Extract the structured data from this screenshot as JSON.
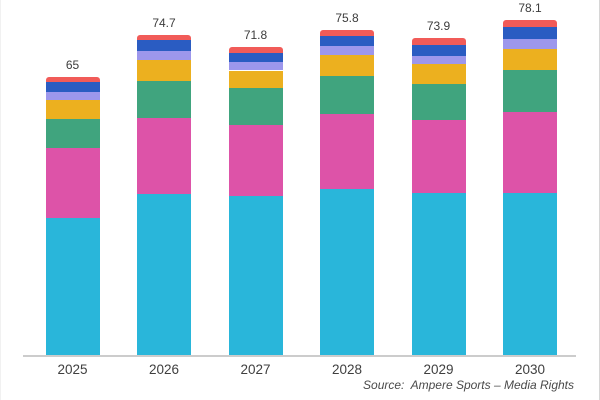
{
  "chart_data": {
    "type": "bar",
    "stacked": true,
    "title": "",
    "legend": "none",
    "grid": false,
    "categories": [
      "2025",
      "2026",
      "2027",
      "2028",
      "2029",
      "2030"
    ],
    "totals": [
      65,
      74.7,
      71.8,
      75.8,
      73.9,
      78.1
    ],
    "total_labels": [
      "65",
      "74.7",
      "71.8",
      "75.8",
      "73.9",
      "78.1"
    ],
    "ylim": [
      0,
      80
    ],
    "series": [
      {
        "name": "cyan",
        "color": "#29b6da",
        "values": [
          32.2,
          37.7,
          37.1,
          38.8,
          37.8,
          38.0
        ]
      },
      {
        "name": "pink",
        "color": "#dd53a8",
        "values": [
          16.1,
          17.6,
          16.6,
          17.5,
          17.1,
          18.8
        ]
      },
      {
        "name": "green",
        "color": "#40a47e",
        "values": [
          6.8,
          8.7,
          8.6,
          8.9,
          8.3,
          9.7
        ]
      },
      {
        "name": "yellow",
        "color": "#ecb01f",
        "values": [
          4.4,
          4.9,
          4.1,
          4.9,
          4.6,
          4.9
        ]
      },
      {
        "name": "purple",
        "color": "#9d97ec",
        "values": [
          2.0,
          2.1,
          2.0,
          1.9,
          1.9,
          2.3
        ]
      },
      {
        "name": "blue",
        "color": "#2a5cc2",
        "values": [
          2.3,
          2.4,
          2.1,
          2.5,
          2.7,
          2.9
        ]
      },
      {
        "name": "red",
        "color": "#f15b58",
        "values": [
          1.2,
          1.3,
          1.3,
          1.3,
          1.5,
          1.5
        ]
      }
    ]
  },
  "footer": {
    "source_text": "Source:  Ampere Sports – Media Rights"
  },
  "colors": {
    "background": "#ffffff",
    "axis_line": "#cccccc",
    "label_text": "#3c3c3c",
    "source_text": "#4a4a4a"
  }
}
